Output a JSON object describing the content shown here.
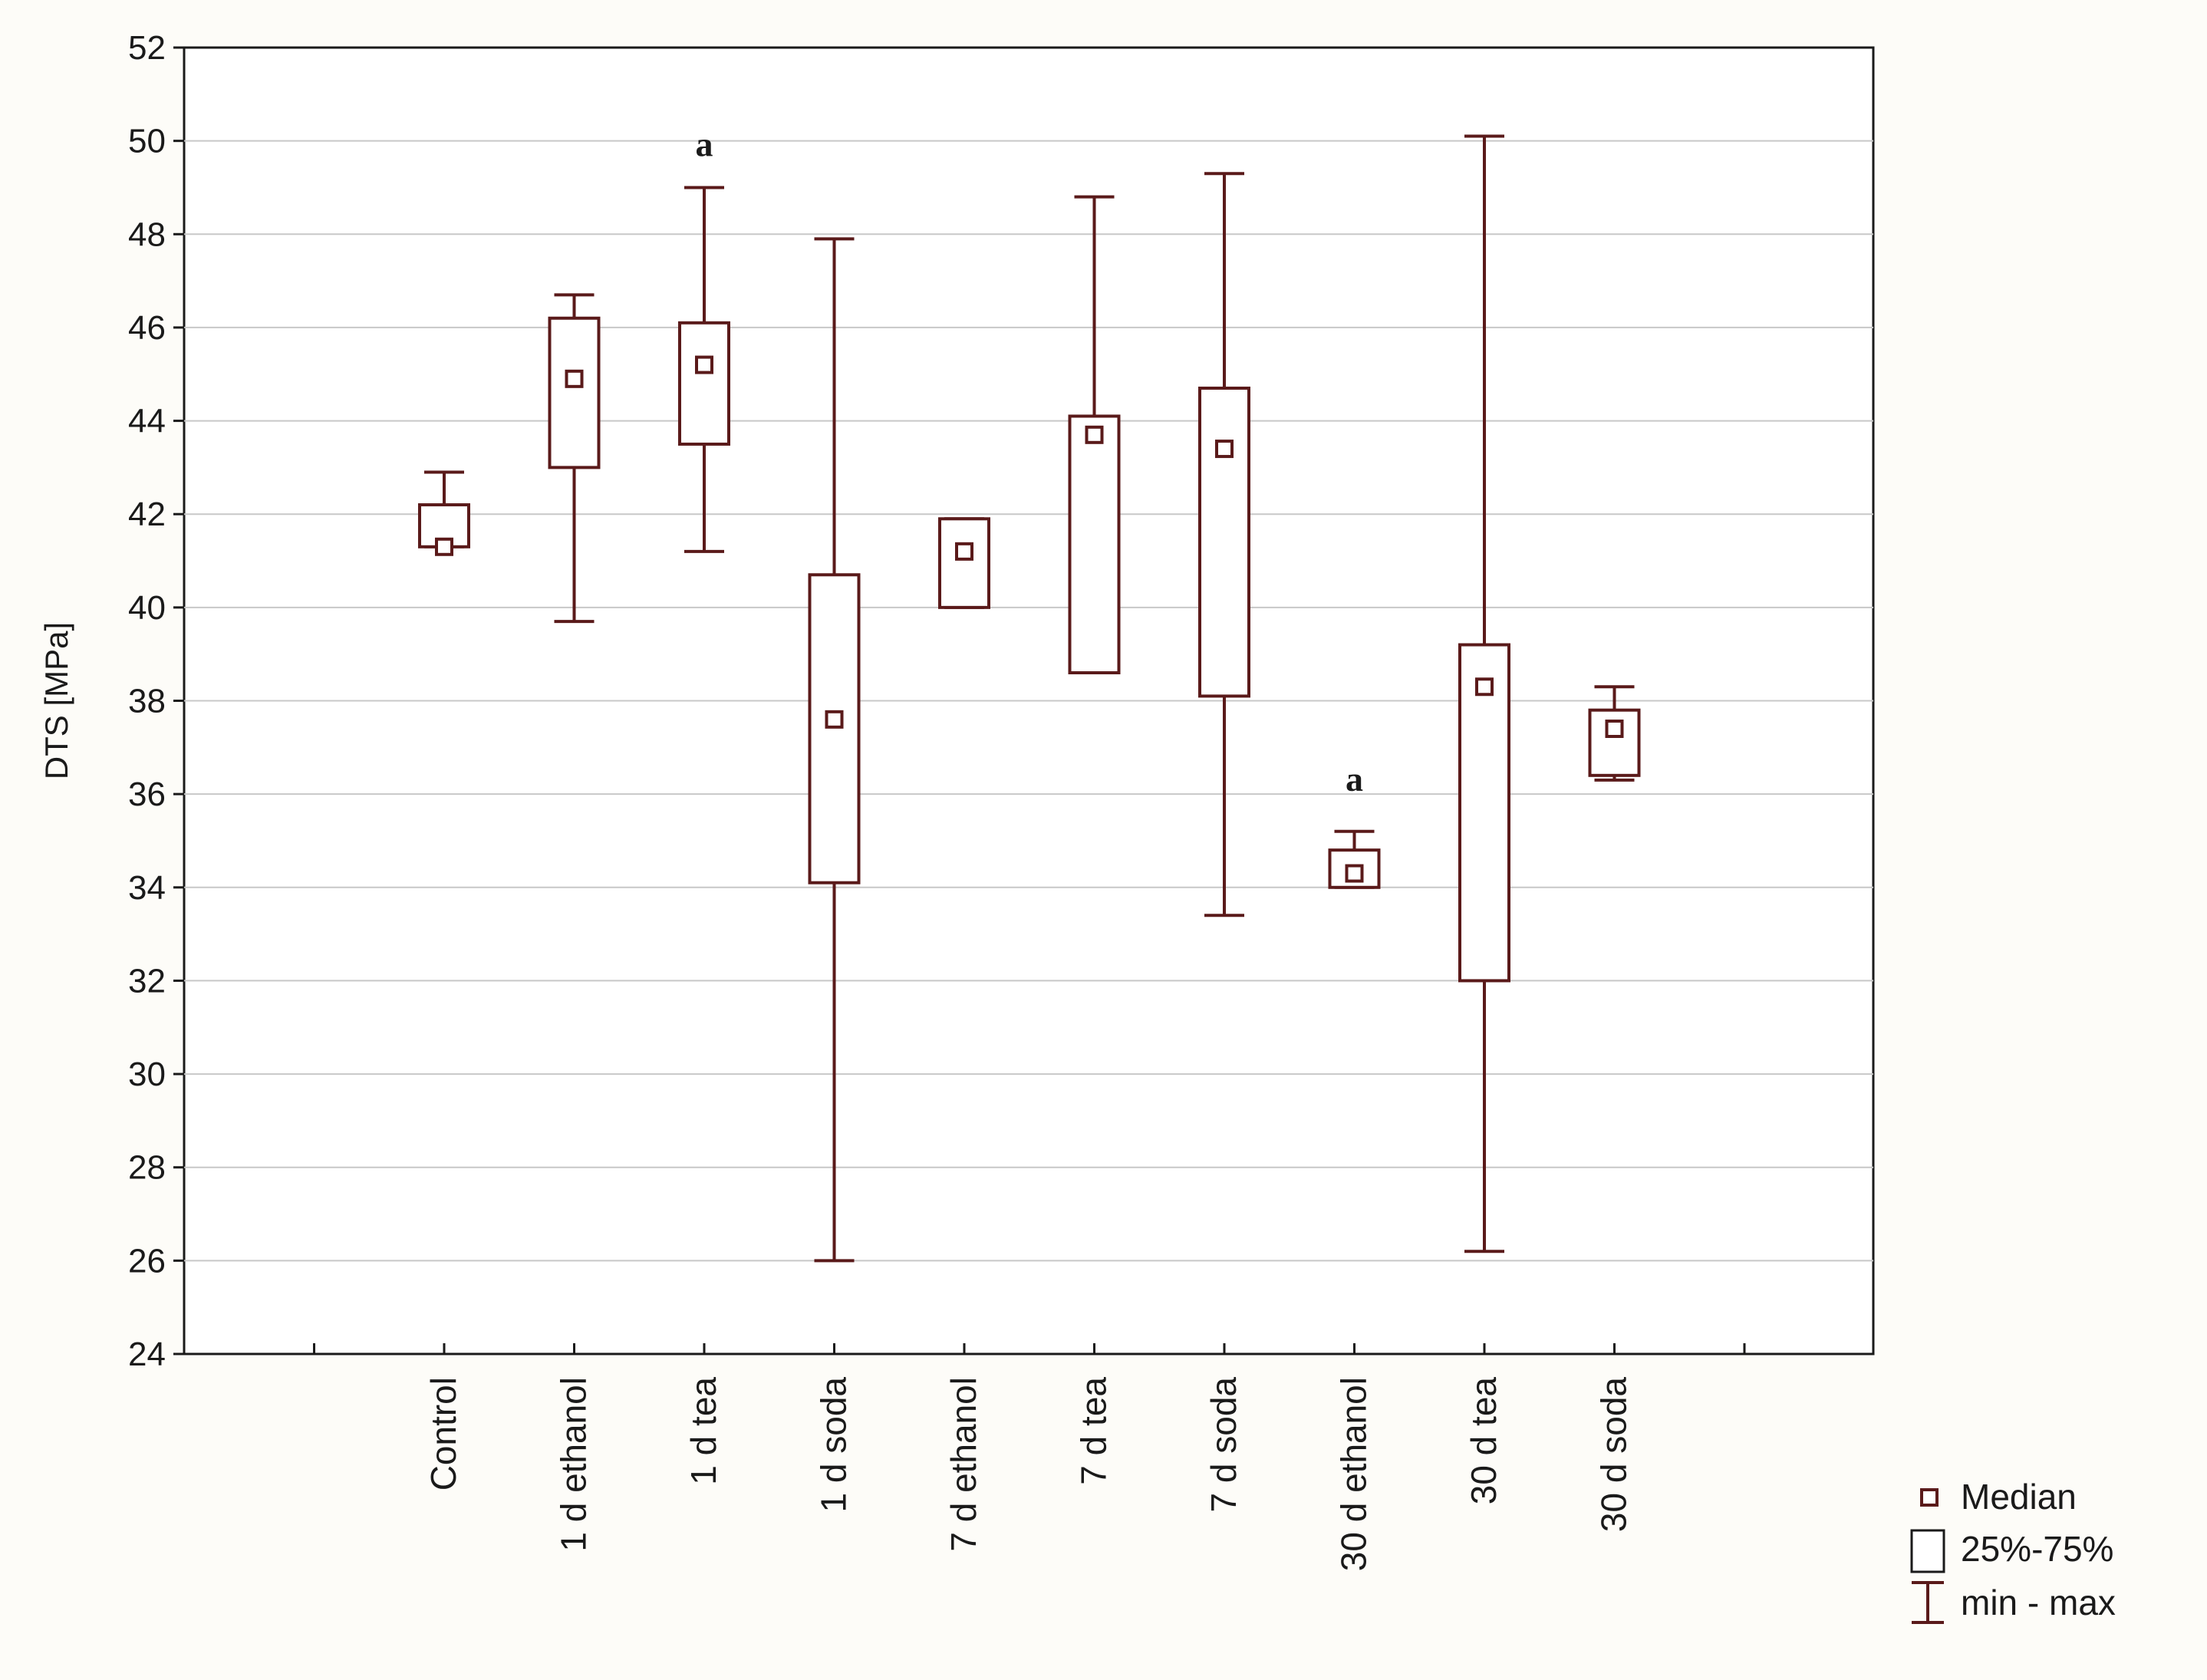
{
  "chart_data": {
    "type": "boxplot",
    "ylabel": "DTS [MPa]",
    "xlabel": "",
    "ylim": [
      24,
      52
    ],
    "yticks": [
      24,
      26,
      28,
      30,
      32,
      34,
      36,
      38,
      40,
      42,
      44,
      46,
      48,
      50,
      52
    ],
    "grid": true,
    "legend_position": "bottom-right",
    "categories": [
      "Control",
      "1 d ethanol",
      "1 d tea",
      "1 d soda",
      "7 d ethanol",
      "7 d tea",
      "7 d soda",
      "30 d ethanol",
      "30 d tea",
      "30 d soda"
    ],
    "series": [
      {
        "category": "Control",
        "min": 41.3,
        "q1": 41.3,
        "median": 41.3,
        "q3": 42.2,
        "max": 42.9
      },
      {
        "category": "1 d ethanol",
        "min": 39.7,
        "q1": 43.0,
        "median": 44.9,
        "q3": 46.2,
        "max": 46.7
      },
      {
        "category": "1 d tea",
        "min": 41.2,
        "q1": 43.5,
        "median": 45.2,
        "q3": 46.1,
        "max": 49.0
      },
      {
        "category": "1 d soda",
        "min": 26.0,
        "q1": 34.1,
        "median": 37.6,
        "q3": 40.7,
        "max": 47.9
      },
      {
        "category": "7 d ethanol",
        "min": 40.0,
        "q1": 40.0,
        "median": 41.2,
        "q3": 41.9,
        "max": 41.9
      },
      {
        "category": "7 d tea",
        "min": 38.6,
        "q1": 38.6,
        "median": 43.7,
        "q3": 44.1,
        "max": 48.8
      },
      {
        "category": "7 d soda",
        "min": 33.4,
        "q1": 38.1,
        "median": 43.4,
        "q3": 44.7,
        "max": 49.3
      },
      {
        "category": "30 d ethanol",
        "min": 34.0,
        "q1": 34.0,
        "median": 34.3,
        "q3": 34.8,
        "max": 35.2
      },
      {
        "category": "30 d tea",
        "min": 26.2,
        "q1": 32.0,
        "median": 38.3,
        "q3": 39.2,
        "max": 50.1
      },
      {
        "category": "30 d soda",
        "min": 36.3,
        "q1": 36.4,
        "median": 37.4,
        "q3": 37.8,
        "max": 38.3
      }
    ],
    "annotations": [
      {
        "category": "1 d tea",
        "text": "a",
        "y": 49.9
      },
      {
        "category": "30 d ethanol",
        "text": "a",
        "y": 36.3
      }
    ],
    "legend": {
      "median": "Median",
      "box": "25%-75%",
      "whisker": "min - max"
    },
    "colors": {
      "box_stroke": "#5a1a1a",
      "grid": "#c8c8c8",
      "axis": "#1a1a1a",
      "background": "#ffffff"
    }
  }
}
